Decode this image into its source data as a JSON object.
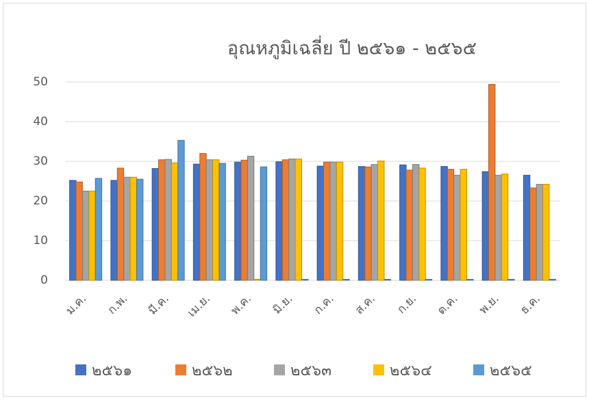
{
  "chart_data": {
    "type": "bar",
    "title": "อุณหภูมิเฉลี่ย ปี ๒๕๖๑ - ๒๕๖๕",
    "categories": [
      "ม.ค.",
      "ก.พ.",
      "มี.ค.",
      "เม.ย.",
      "พ.ค.",
      "มิ.ย.",
      "ก.ค.",
      "ส.ค.",
      "ก.ย.",
      "ต.ค.",
      "พ.ย.",
      "ธ.ค."
    ],
    "series": [
      {
        "name": "๒๕๖๑",
        "color": "#4472c4",
        "values": [
          25.2,
          25.2,
          28.2,
          29.3,
          29.8,
          29.9,
          28.8,
          28.7,
          29.1,
          28.7,
          27.4,
          26.5
        ]
      },
      {
        "name": "๒๕๖๒",
        "color": "#ed7d31",
        "values": [
          24.8,
          28.3,
          30.4,
          32,
          30.3,
          30.4,
          29.8,
          28.6,
          27.8,
          28,
          49.4,
          23.3
        ]
      },
      {
        "name": "๒๕๖๓",
        "color": "#a5a5a5",
        "values": [
          22.5,
          26,
          30.5,
          30.4,
          31.3,
          30.6,
          29.8,
          29.2,
          29.2,
          26.5,
          26.5,
          24.2
        ]
      },
      {
        "name": "๒๕๖๔",
        "color": "#ffc000",
        "values": [
          22.5,
          26,
          29.6,
          30.4,
          0,
          30.6,
          29.8,
          30.1,
          28.3,
          28,
          26.8,
          24.2
        ]
      },
      {
        "name": "๒๕๖๕",
        "color": "#5b9bd5",
        "values": [
          25.7,
          25.5,
          35.3,
          29.5,
          28.6,
          0,
          0,
          0,
          0,
          0,
          0,
          0
        ]
      }
    ],
    "ylim": [
      0,
      50
    ],
    "yticks": [
      0,
      10,
      20,
      30,
      40,
      50
    ],
    "grid": true,
    "legend": "bottom"
  }
}
